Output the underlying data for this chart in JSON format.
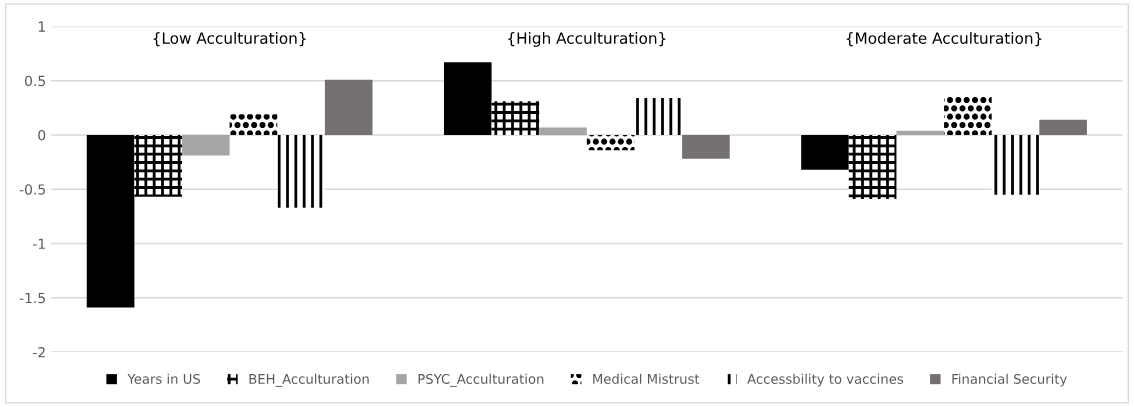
{
  "chart_data": {
    "type": "bar",
    "categories": [
      null,
      null,
      null
    ],
    "series": [
      {
        "name": "Years in US",
        "color": "#000000",
        "values": [
          -1.59,
          0.67,
          -0.32
        ]
      },
      {
        "name": "BEH_Acculturation",
        "color": "#000000",
        "values": [
          -0.57,
          0.31,
          -0.59
        ]
      },
      {
        "name": "PSYC_Acculturation",
        "color": "#a6a6a6",
        "values": [
          -0.19,
          0.07,
          0.04
        ]
      },
      {
        "name": "Medical Mistrust",
        "color": "#000000",
        "values": [
          0.19,
          -0.14,
          0.36
        ]
      },
      {
        "name": "Accessbility to vaccines",
        "color": "#000000",
        "values": [
          -0.67,
          0.34,
          -0.55
        ]
      },
      {
        "name": "Financial Security",
        "color": "#767171",
        "values": [
          0.51,
          -0.22,
          0.14
        ]
      }
    ],
    "annotations": [
      "{Low Acculturation}",
      "{High Acculturation}",
      "{Moderate Acculturation}"
    ],
    "ylim": [
      -2,
      1
    ],
    "yticks": [
      -2,
      -1.5,
      -1,
      -0.5,
      0,
      0.5,
      1
    ],
    "grid": "y",
    "legend": "bottom"
  }
}
